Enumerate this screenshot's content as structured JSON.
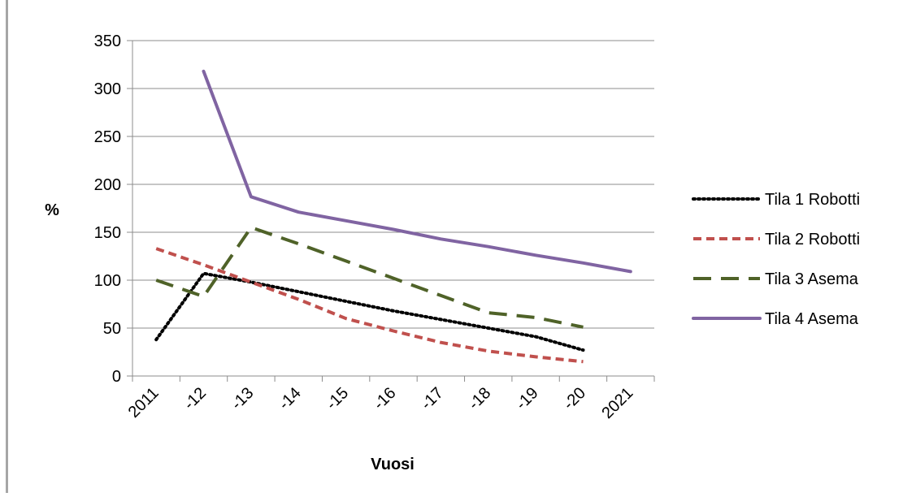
{
  "chart_data": {
    "type": "line",
    "categories": [
      "2011",
      "-12",
      "-13",
      "-14",
      "-15",
      "-16",
      "-17",
      "-18",
      "-19",
      "-20",
      "2021"
    ],
    "title": "",
    "xlabel": "Vuosi",
    "ylabel": "%",
    "ylim": [
      0,
      350
    ],
    "yticks": [
      0,
      50,
      100,
      150,
      200,
      250,
      300,
      350
    ],
    "grid": true,
    "legend_position": "right",
    "series": [
      {
        "name": "Tila 1 Robotti",
        "color": "#000000",
        "dash": "dotted",
        "values": [
          38,
          107,
          98,
          88,
          78,
          68,
          59,
          50,
          41,
          27,
          null
        ]
      },
      {
        "name": "Tila 2 Robotti",
        "color": "#c0504d",
        "dash": "dashed",
        "values": [
          133,
          116,
          98,
          80,
          60,
          47,
          35,
          26,
          20,
          15,
          null
        ]
      },
      {
        "name": "Tila 3 Asema",
        "color": "#4f6228",
        "dash": "long-dashed",
        "values": [
          100,
          83,
          155,
          138,
          120,
          102,
          84,
          66,
          61,
          51,
          null
        ]
      },
      {
        "name": "Tila 4 Asema",
        "color": "#8064a2",
        "dash": "solid",
        "values": [
          null,
          318,
          187,
          171,
          162,
          153,
          143,
          135,
          126,
          118,
          109
        ]
      }
    ]
  }
}
